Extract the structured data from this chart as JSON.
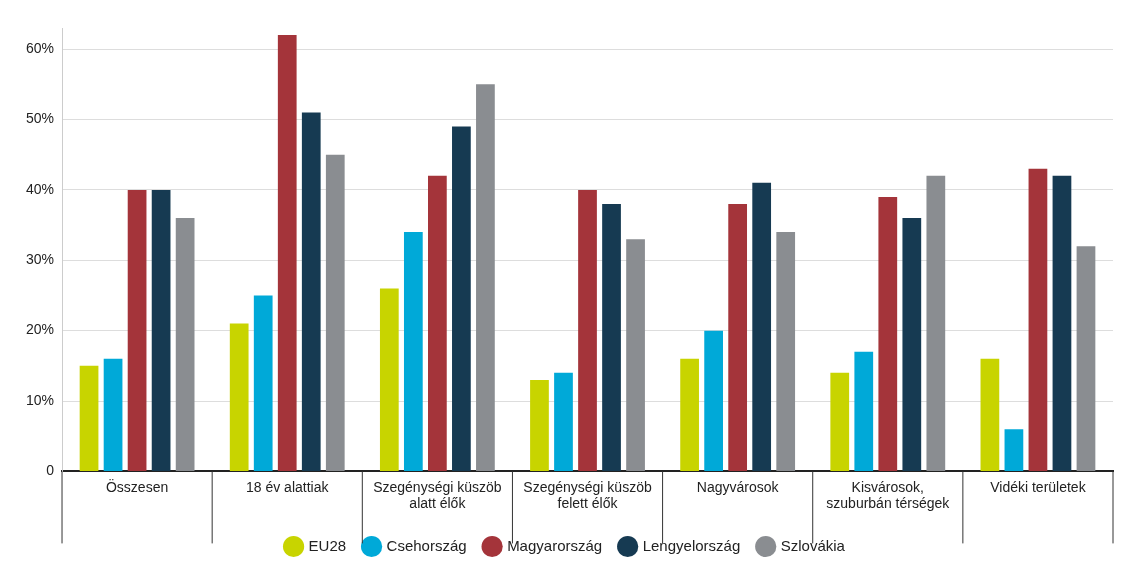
{
  "chart_data": {
    "type": "bar",
    "categories": [
      "Összesen",
      "18 év alattiak",
      "Szegénységi küszöb alatt élők",
      "Szegénységi küszöb felett élők",
      "Nagyvárosok",
      "Kisvárosok, szuburbán térségek",
      "Vidéki területek"
    ],
    "series": [
      {
        "name": "EU28",
        "color": "#c8d400",
        "values": [
          15,
          21,
          26,
          13,
          16,
          14,
          16
        ]
      },
      {
        "name": "Csehország",
        "color": "#00a9d8",
        "values": [
          16,
          25,
          34,
          14,
          20,
          17,
          6
        ]
      },
      {
        "name": "Magyarország",
        "color": "#a4343a",
        "values": [
          40,
          62,
          42,
          40,
          38,
          39,
          43
        ]
      },
      {
        "name": "Lengyelország",
        "color": "#163a52",
        "values": [
          40,
          51,
          49,
          38,
          41,
          36,
          42
        ]
      },
      {
        "name": "Szlovákia",
        "color": "#8a8d91",
        "values": [
          36,
          45,
          55,
          33,
          34,
          42,
          32
        ]
      }
    ],
    "ylim": [
      0,
      63
    ],
    "yticks": [
      {
        "value": 0,
        "label": "0"
      },
      {
        "value": 10,
        "label": "10%"
      },
      {
        "value": 20,
        "label": "20%"
      },
      {
        "value": 30,
        "label": "30%"
      },
      {
        "value": 40,
        "label": "40%"
      },
      {
        "value": 50,
        "label": "50%"
      },
      {
        "value": 60,
        "label": "60%"
      }
    ],
    "grid": "y",
    "legend": "bottom"
  }
}
